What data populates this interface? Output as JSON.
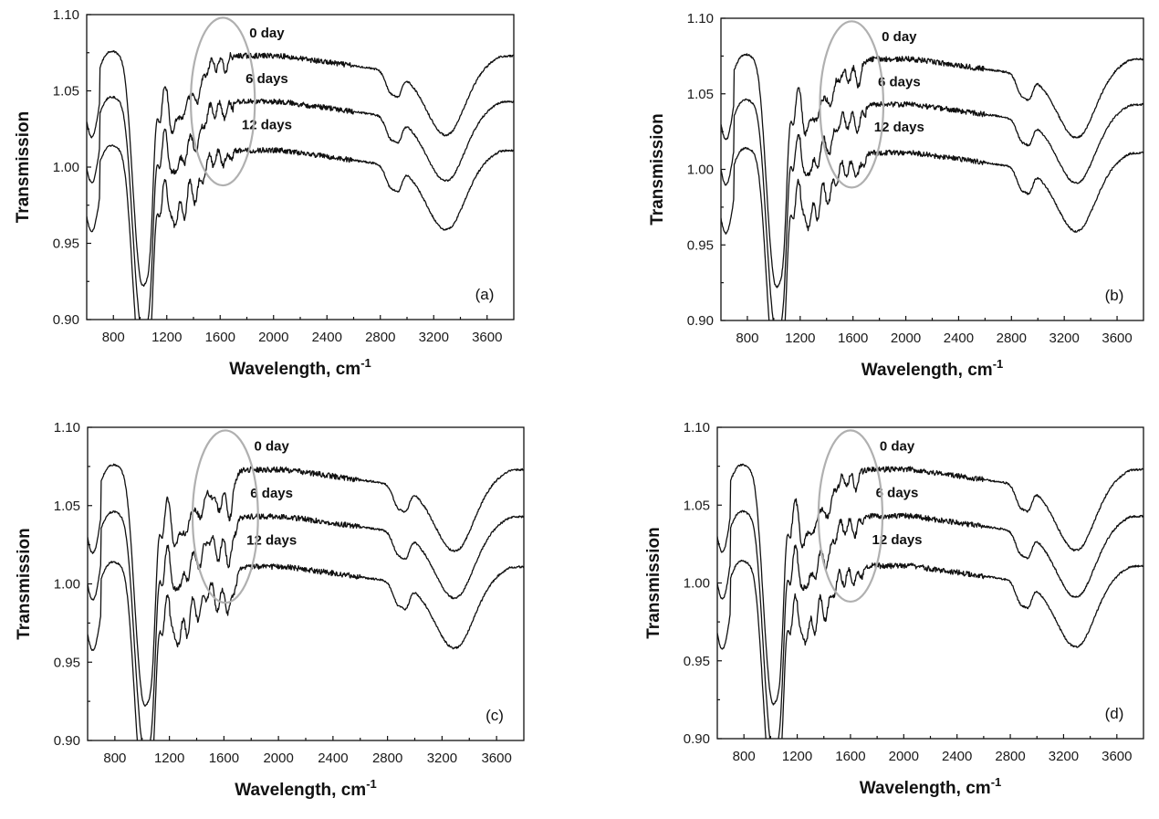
{
  "chart_data": [
    {
      "type": "line",
      "panel_label": "(a)",
      "xlabel": "Wavelength, cm",
      "xlabel_sup": "-1",
      "ylabel": "Transmission",
      "xlim": [
        600,
        3800
      ],
      "ylim": [
        0.9,
        1.1
      ],
      "xticks": [
        800,
        1200,
        1600,
        2000,
        2400,
        2800,
        3200,
        3600
      ],
      "yticks": [
        "0.90",
        "0.95",
        "1.00",
        "1.05",
        "1.10"
      ],
      "ellipse_center": [
        1620,
        1.043
      ],
      "series": [
        {
          "name": "0 day",
          "baseline": 1.073
        },
        {
          "name": "6 days",
          "baseline": 1.043
        },
        {
          "name": "12 days",
          "baseline": 1.013
        }
      ]
    },
    {
      "type": "line",
      "panel_label": "(b)",
      "xlabel": "Wavelength, cm",
      "xlabel_sup": "-1",
      "ylabel": "Transmission",
      "xlim": [
        600,
        3800
      ],
      "ylim": [
        0.9,
        1.1
      ],
      "xticks": [
        800,
        1200,
        1600,
        2000,
        2400,
        2800,
        3200,
        3600
      ],
      "yticks": [
        "0.90",
        "0.95",
        "1.00",
        "1.05",
        "1.10"
      ],
      "ellipse_center": [
        1590,
        1.043
      ],
      "series": [
        {
          "name": "0 day",
          "baseline": 1.073
        },
        {
          "name": "6 days",
          "baseline": 1.043
        },
        {
          "name": "12 days",
          "baseline": 1.013
        }
      ]
    },
    {
      "type": "line",
      "panel_label": "(c)",
      "xlabel": "Wavelength, cm",
      "xlabel_sup": "-1",
      "ylabel": "Transmission",
      "xlim": [
        600,
        3800
      ],
      "ylim": [
        0.9,
        1.1
      ],
      "xticks": [
        800,
        1200,
        1600,
        2000,
        2400,
        2800,
        3200,
        3600
      ],
      "yticks": [
        "0.90",
        "0.95",
        "1.00",
        "1.05",
        "1.10"
      ],
      "ellipse_center": [
        1610,
        1.043
      ],
      "series": [
        {
          "name": "0 day",
          "baseline": 1.073
        },
        {
          "name": "6 days",
          "baseline": 1.043
        },
        {
          "name": "12 days",
          "baseline": 1.013
        }
      ]
    },
    {
      "type": "line",
      "panel_label": "(d)",
      "xlabel": "Wavelength, cm",
      "xlabel_sup": "-1",
      "ylabel": "Transmission",
      "xlim": [
        600,
        3800
      ],
      "ylim": [
        0.9,
        1.1
      ],
      "xticks": [
        800,
        1200,
        1600,
        2000,
        2400,
        2800,
        3200,
        3600
      ],
      "yticks": [
        "0.90",
        "0.95",
        "1.00",
        "1.05",
        "1.10"
      ],
      "ellipse_center": [
        1600,
        1.043
      ],
      "series": [
        {
          "name": "0 day",
          "baseline": 1.073
        },
        {
          "name": "6 days",
          "baseline": 1.043
        },
        {
          "name": "12 days",
          "baseline": 1.013
        }
      ]
    }
  ]
}
